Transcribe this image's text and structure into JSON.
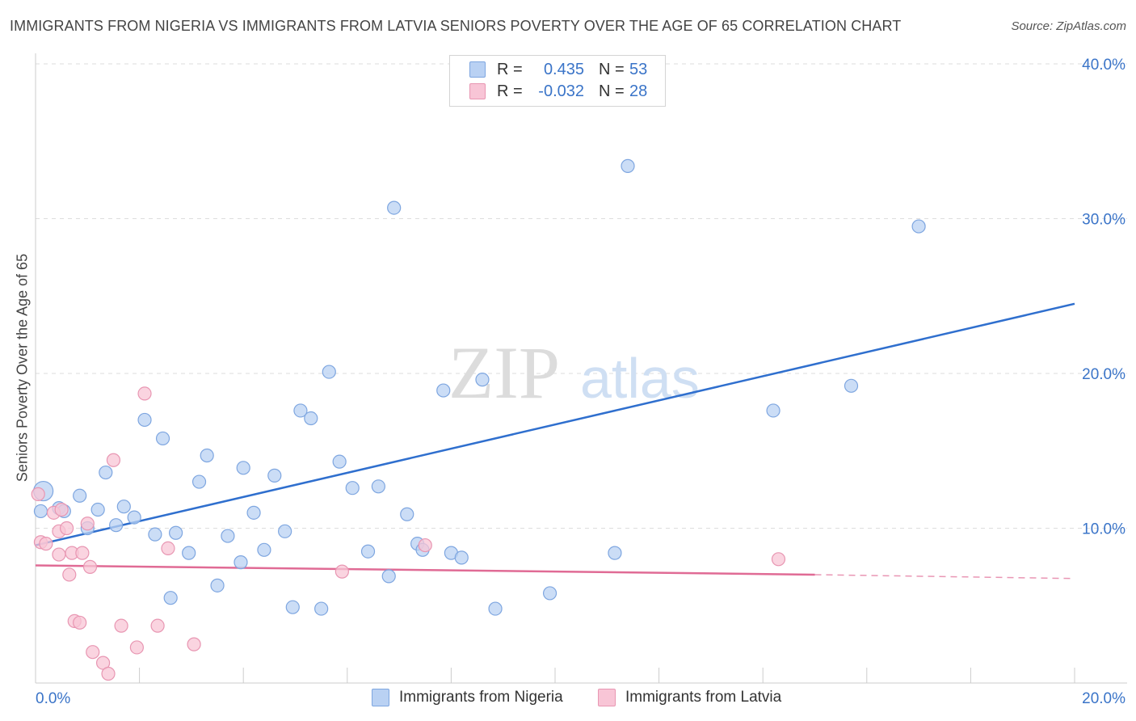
{
  "title": "IMMIGRANTS FROM NIGERIA VS IMMIGRANTS FROM LATVIA SENIORS POVERTY OVER THE AGE OF 65 CORRELATION CHART",
  "source": "Source: ZipAtlas.com",
  "watermark": {
    "zip": "ZIP",
    "atlas": "atlas"
  },
  "legend": {
    "r_label": "R =",
    "n_label": "N =",
    "nigeria": {
      "r": "0.435",
      "n": "53"
    },
    "latvia": {
      "r": "-0.032",
      "n": "28"
    }
  },
  "colors": {
    "nigeria_fill": "#b9d1f3",
    "nigeria_stroke": "#7ea6e0",
    "nigeria_line": "#2f6fce",
    "latvia_fill": "#f8c5d6",
    "latvia_stroke": "#e896b2",
    "latvia_line": "#e06b95",
    "axis_text": "#3a74c8",
    "grid": "#dddddd"
  },
  "chart_data": {
    "type": "scatter",
    "title": "IMMIGRANTS FROM NIGERIA VS IMMIGRANTS FROM LATVIA SENIORS POVERTY OVER THE AGE OF 65 CORRELATION CHART",
    "xlabel": "",
    "ylabel": "Seniors Poverty Over the Age of 65",
    "xlim": [
      0,
      20
    ],
    "ylim": [
      0,
      40
    ],
    "x_tick_labels": [
      "0.0%",
      "20.0%"
    ],
    "y_ticks": [
      10,
      20,
      30,
      40
    ],
    "y_tick_labels": [
      "10.0%",
      "20.0%",
      "30.0%",
      "40.0%"
    ],
    "grid": true,
    "legend_position": "top-center",
    "series": [
      {
        "name": "Immigrants from Nigeria",
        "r": 0.435,
        "n": 53,
        "trend": {
          "x0": 0.0,
          "y0": 8.9,
          "x1": 20.0,
          "y1": 24.5
        },
        "points": [
          [
            0.15,
            12.4
          ],
          [
            0.1,
            11.1
          ],
          [
            0.45,
            11.3
          ],
          [
            0.85,
            12.1
          ],
          [
            0.55,
            11.1
          ],
          [
            1.0,
            10.0
          ],
          [
            1.2,
            11.2
          ],
          [
            1.35,
            13.6
          ],
          [
            1.55,
            10.2
          ],
          [
            1.7,
            11.4
          ],
          [
            1.9,
            10.7
          ],
          [
            2.1,
            17.0
          ],
          [
            2.3,
            9.6
          ],
          [
            2.45,
            15.8
          ],
          [
            2.6,
            5.5
          ],
          [
            2.7,
            9.7
          ],
          [
            2.95,
            8.4
          ],
          [
            3.15,
            13.0
          ],
          [
            3.3,
            14.7
          ],
          [
            3.5,
            6.3
          ],
          [
            3.7,
            9.5
          ],
          [
            3.95,
            7.8
          ],
          [
            4.0,
            13.9
          ],
          [
            4.2,
            11.0
          ],
          [
            4.4,
            8.6
          ],
          [
            4.6,
            13.4
          ],
          [
            4.8,
            9.8
          ],
          [
            4.95,
            4.9
          ],
          [
            5.1,
            17.6
          ],
          [
            5.3,
            17.1
          ],
          [
            5.5,
            4.8
          ],
          [
            5.65,
            20.1
          ],
          [
            5.85,
            14.3
          ],
          [
            6.1,
            12.6
          ],
          [
            6.4,
            8.5
          ],
          [
            6.6,
            12.7
          ],
          [
            6.8,
            6.9
          ],
          [
            6.9,
            30.7
          ],
          [
            7.15,
            10.9
          ],
          [
            7.35,
            9.0
          ],
          [
            7.45,
            8.6
          ],
          [
            7.85,
            18.9
          ],
          [
            8.0,
            8.4
          ],
          [
            8.2,
            8.1
          ],
          [
            8.6,
            19.6
          ],
          [
            8.85,
            4.8
          ],
          [
            9.9,
            5.8
          ],
          [
            11.15,
            8.4
          ],
          [
            11.4,
            33.4
          ],
          [
            11.9,
            38.6
          ],
          [
            14.2,
            17.6
          ],
          [
            15.7,
            19.2
          ],
          [
            17.0,
            29.5
          ]
        ]
      },
      {
        "name": "Immigrants from Latvia",
        "r": -0.032,
        "n": 28,
        "trend": {
          "x0": 0.0,
          "y0": 7.6,
          "x1": 15.0,
          "y1": 7.0,
          "dashed_to_x": 20.0,
          "dashed_to_y": 6.75
        },
        "points": [
          [
            0.05,
            12.2
          ],
          [
            0.1,
            9.1
          ],
          [
            0.2,
            9.0
          ],
          [
            0.35,
            11.0
          ],
          [
            0.45,
            9.8
          ],
          [
            0.45,
            8.3
          ],
          [
            0.5,
            11.2
          ],
          [
            0.6,
            10.0
          ],
          [
            0.65,
            7.0
          ],
          [
            0.7,
            8.4
          ],
          [
            0.75,
            4.0
          ],
          [
            0.85,
            3.9
          ],
          [
            0.9,
            8.4
          ],
          [
            1.0,
            10.3
          ],
          [
            1.05,
            7.5
          ],
          [
            1.1,
            2.0
          ],
          [
            1.3,
            1.3
          ],
          [
            1.4,
            0.6
          ],
          [
            1.5,
            14.4
          ],
          [
            1.65,
            3.7
          ],
          [
            1.95,
            2.3
          ],
          [
            2.1,
            18.7
          ],
          [
            2.35,
            3.7
          ],
          [
            2.55,
            8.7
          ],
          [
            3.05,
            2.5
          ],
          [
            5.9,
            7.2
          ],
          [
            7.5,
            8.9
          ],
          [
            14.3,
            8.0
          ]
        ]
      }
    ]
  },
  "bottom_legend": {
    "nigeria": "Immigrants from Nigeria",
    "latvia": "Immigrants from Latvia"
  }
}
